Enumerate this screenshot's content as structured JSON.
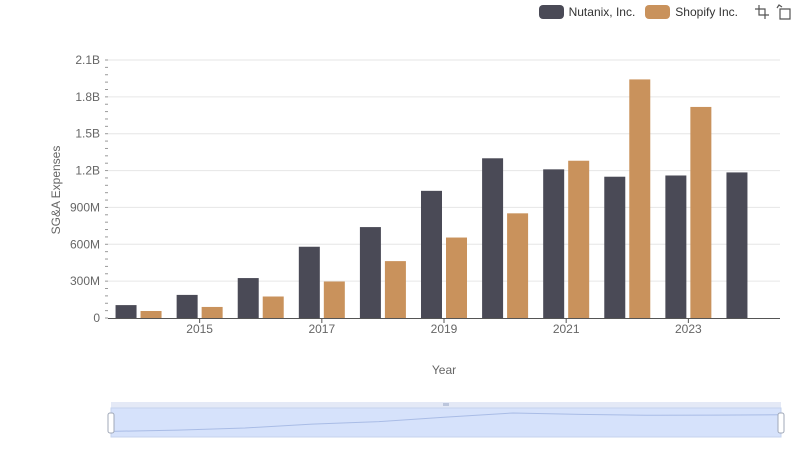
{
  "chart_data": {
    "type": "bar",
    "x": [
      2014,
      2015,
      2016,
      2017,
      2018,
      2019,
      2020,
      2021,
      2022,
      2023,
      2024
    ],
    "series": [
      {
        "name": "Nutanix, Inc.",
        "color": "#4a4a56",
        "values": [
          105000000,
          188000000,
          325000000,
          580000000,
          740000000,
          1035000000,
          1300000000,
          1210000000,
          1150000000,
          1160000000,
          1185000000
        ]
      },
      {
        "name": "Shopify Inc.",
        "color": "#c9925c",
        "values": [
          57000000,
          90000000,
          175000000,
          297000000,
          463000000,
          655000000,
          852000000,
          1280000000,
          1942000000,
          1718000000,
          null
        ]
      }
    ],
    "xlabel": "Year",
    "ylabel": "SG&A Expenses",
    "ylim": [
      0,
      2100000000
    ],
    "y_ticks": [
      {
        "value": 0,
        "label": "0"
      },
      {
        "value": 300000000,
        "label": "300M"
      },
      {
        "value": 600000000,
        "label": "600M"
      },
      {
        "value": 900000000,
        "label": "900M"
      },
      {
        "value": 1200000000,
        "label": "1.2B"
      },
      {
        "value": 1500000000,
        "label": "1.5B"
      },
      {
        "value": 1800000000,
        "label": "1.8B"
      },
      {
        "value": 2100000000,
        "label": "2.1B"
      }
    ],
    "x_tick_labels": [
      {
        "value": 2015,
        "label": "2015"
      },
      {
        "value": 2017,
        "label": "2017"
      },
      {
        "value": 2019,
        "label": "2019"
      },
      {
        "value": 2021,
        "label": "2021"
      },
      {
        "value": 2023,
        "label": "2023"
      }
    ],
    "grid": true,
    "legend_position": "top-right"
  },
  "legend": {
    "items": [
      {
        "label": "Nutanix, Inc.",
        "color": "#4a4a56"
      },
      {
        "label": "Shopify Inc.",
        "color": "#c9925c"
      }
    ]
  },
  "toolbar": {
    "icons": [
      "zoom-select-icon",
      "zoom-reset-icon"
    ]
  },
  "data_zoom": {
    "start_fraction": 0,
    "end_fraction": 1,
    "color": "#d6e2fb"
  }
}
